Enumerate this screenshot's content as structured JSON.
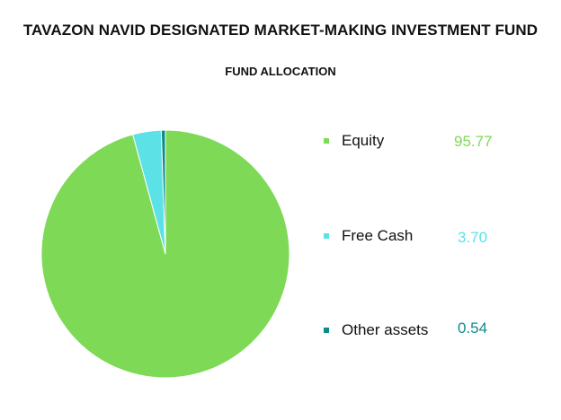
{
  "header": {
    "title": "TAVAZON NAVID DESIGNATED MARKET-MAKING INVESTMENT FUND",
    "subtitle": "FUND ALLOCATION"
  },
  "chart_data": {
    "type": "pie",
    "title": "FUND ALLOCATION",
    "legend_placement": "right",
    "slices": [
      {
        "label": "Equity",
        "value": 95.77,
        "value_label": "95.77",
        "color": "#7ed957"
      },
      {
        "label": "Free Cash",
        "value": 3.7,
        "value_label": "3.70",
        "color": "#5ce1e6"
      },
      {
        "label": "Other assets",
        "value": 0.54,
        "value_label": "0.54",
        "color": "#0e8c8c"
      }
    ]
  }
}
